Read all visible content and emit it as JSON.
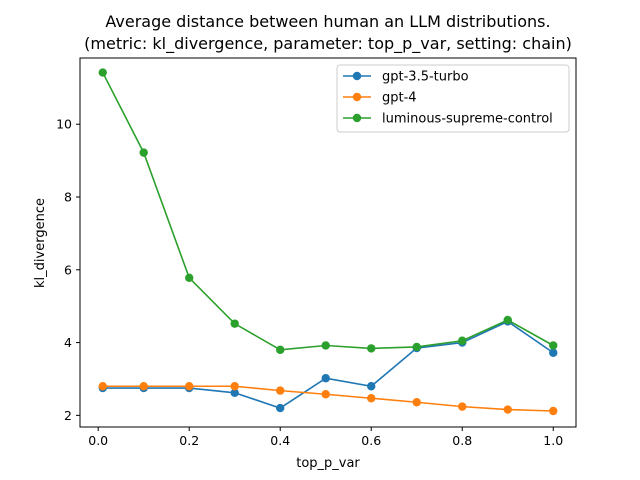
{
  "chart_data": {
    "type": "line",
    "title": "Average distance between human an LLM distributions.",
    "subtitle": "(metric: kl_divergence, parameter: top_p_var, setting: chain)",
    "xlabel": "top_p_var",
    "ylabel": "kl_divergence",
    "xlim": [
      -0.04,
      1.05
    ],
    "ylim": [
      1.68,
      11.82
    ],
    "xticks": [
      0.0,
      0.2,
      0.4,
      0.6,
      0.8,
      1.0
    ],
    "xtick_labels": [
      "0.0",
      "0.2",
      "0.4",
      "0.6",
      "0.8",
      "1.0"
    ],
    "yticks": [
      2,
      4,
      6,
      8,
      10
    ],
    "ytick_labels": [
      "2",
      "4",
      "6",
      "8",
      "10"
    ],
    "grid": false,
    "legend_position": "top-right",
    "x": [
      0.01,
      0.1,
      0.2,
      0.3,
      0.4,
      0.5,
      0.6,
      0.7,
      0.8,
      0.9,
      1.0
    ],
    "series": [
      {
        "name": "gpt-3.5-turbo",
        "color": "#1f77b4",
        "values": [
          2.75,
          2.75,
          2.75,
          2.62,
          2.2,
          3.02,
          2.8,
          3.85,
          4.0,
          4.58,
          3.72
        ]
      },
      {
        "name": "gpt-4",
        "color": "#ff7f0e",
        "values": [
          2.8,
          2.8,
          2.8,
          2.8,
          2.68,
          2.58,
          2.47,
          2.36,
          2.24,
          2.16,
          2.12
        ]
      },
      {
        "name": "luminous-supreme-control",
        "color": "#2ca02c",
        "values": [
          11.42,
          9.22,
          5.78,
          4.52,
          3.8,
          3.92,
          3.84,
          3.88,
          4.05,
          4.62,
          3.92
        ]
      }
    ]
  }
}
